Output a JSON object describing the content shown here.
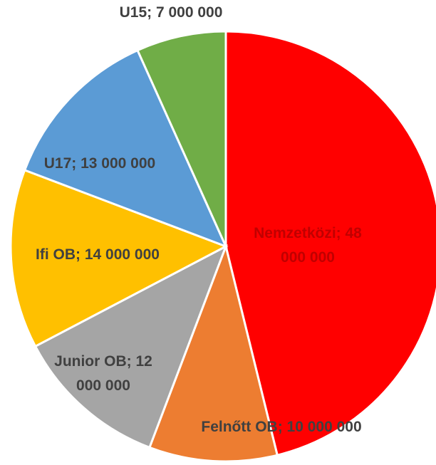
{
  "chart_data": {
    "type": "pie",
    "categories": [
      "Nemzetközi",
      "Felnőtt OB",
      "Junior OB",
      "Ifi OB",
      "U17",
      "U15"
    ],
    "values": [
      48000000,
      10000000,
      12000000,
      14000000,
      13000000,
      7000000
    ],
    "value_labels": [
      "Nemzetközi; 48 000 000",
      "Felnőtt OB; 10 000 000",
      "Junior OB; 12 000 000",
      "Ifi OB; 14 000 000",
      "U17; 13 000 000",
      "U15; 7 000 000"
    ],
    "colors": [
      "#ff0000",
      "#ed7d31",
      "#a5a5a5",
      "#ffc000",
      "#5b9bd5",
      "#70ad47"
    ]
  }
}
